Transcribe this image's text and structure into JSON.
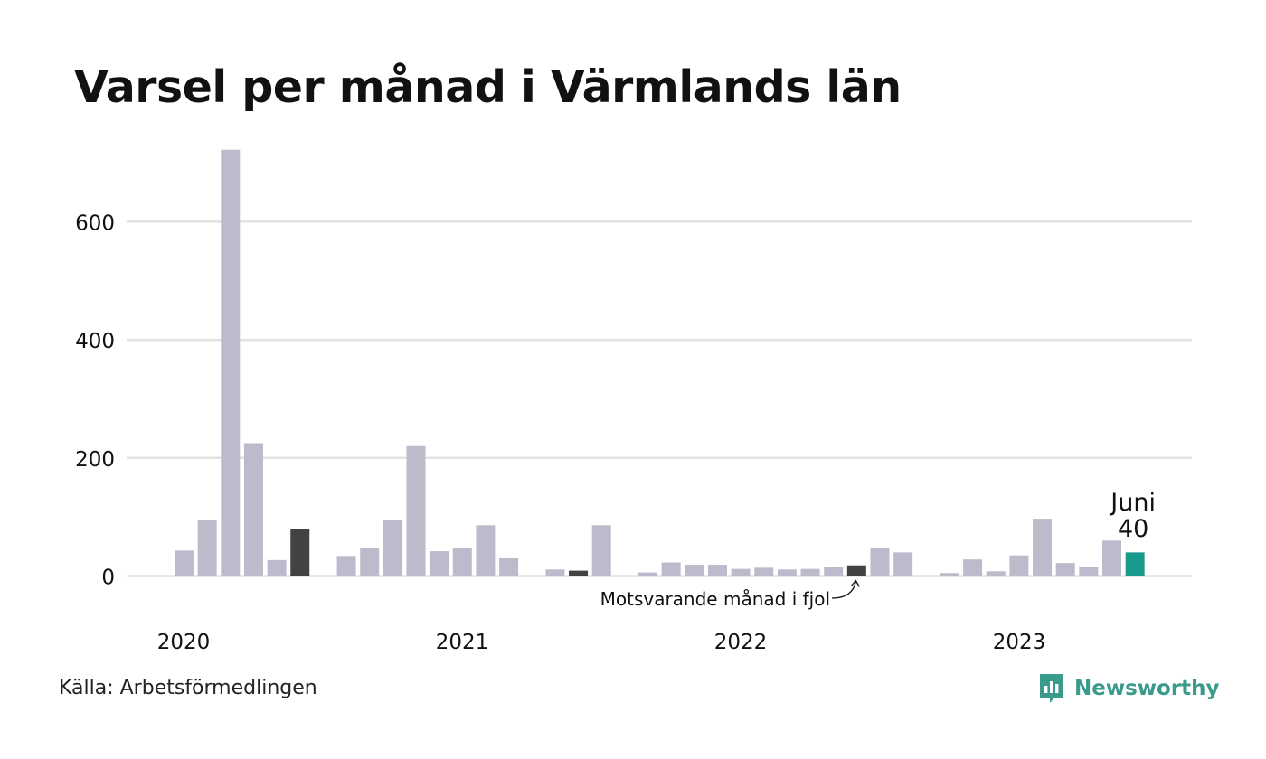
{
  "title": "Varsel per månad i Värmlands län",
  "source": "Källa: Arbetsförmedlingen",
  "brand": "Newsworthy",
  "colors": {
    "bar": "#bcbbcb",
    "highlight_prior": "#424242",
    "current": "#1a9a8a",
    "grid": "#e2e2e2",
    "text": "#111111"
  },
  "chart_data": {
    "type": "bar",
    "ylim": [
      0,
      720
    ],
    "yticks": [
      0,
      200,
      400,
      600
    ],
    "x_labels": [
      "2020",
      "2021",
      "2022",
      "2023"
    ],
    "grid": true,
    "series": [
      {
        "values": [
          {
            "x": "2020-01",
            "y": 43
          },
          {
            "x": "2020-02",
            "y": 95
          },
          {
            "x": "2020-03",
            "y": 722
          },
          {
            "x": "2020-04",
            "y": 225
          },
          {
            "x": "2020-05",
            "y": 27
          },
          {
            "x": "2020-06",
            "y": 80,
            "highlight": "prior"
          },
          {
            "x": "2020-07",
            "y": 0
          },
          {
            "x": "2020-08",
            "y": 34
          },
          {
            "x": "2020-09",
            "y": 48
          },
          {
            "x": "2020-10",
            "y": 95
          },
          {
            "x": "2020-11",
            "y": 220
          },
          {
            "x": "2020-12",
            "y": 42
          },
          {
            "x": "2021-01",
            "y": 48
          },
          {
            "x": "2021-02",
            "y": 86
          },
          {
            "x": "2021-03",
            "y": 31
          },
          {
            "x": "2021-04",
            "y": 0
          },
          {
            "x": "2021-05",
            "y": 11
          },
          {
            "x": "2021-06",
            "y": 9,
            "highlight": "prior"
          },
          {
            "x": "2021-07",
            "y": 86
          },
          {
            "x": "2021-08",
            "y": 0
          },
          {
            "x": "2021-09",
            "y": 6
          },
          {
            "x": "2021-10",
            "y": 23
          },
          {
            "x": "2021-11",
            "y": 19
          },
          {
            "x": "2021-12",
            "y": 19
          },
          {
            "x": "2022-01",
            "y": 12
          },
          {
            "x": "2022-02",
            "y": 14
          },
          {
            "x": "2022-03",
            "y": 11
          },
          {
            "x": "2022-04",
            "y": 12
          },
          {
            "x": "2022-05",
            "y": 16
          },
          {
            "x": "2022-06",
            "y": 18,
            "highlight": "prior"
          },
          {
            "x": "2022-07",
            "y": 48
          },
          {
            "x": "2022-08",
            "y": 40
          },
          {
            "x": "2022-09",
            "y": 0
          },
          {
            "x": "2022-10",
            "y": 5
          },
          {
            "x": "2022-11",
            "y": 28
          },
          {
            "x": "2022-12",
            "y": 8
          },
          {
            "x": "2023-01",
            "y": 35
          },
          {
            "x": "2023-02",
            "y": 97
          },
          {
            "x": "2023-03",
            "y": 22
          },
          {
            "x": "2023-04",
            "y": 16
          },
          {
            "x": "2023-05",
            "y": 60
          },
          {
            "x": "2023-06",
            "y": 40,
            "highlight": "current"
          }
        ]
      }
    ],
    "annotations": {
      "current_month": "Juni",
      "current_value": "40",
      "prior_note": "Motsvarande månad i fjol"
    }
  }
}
